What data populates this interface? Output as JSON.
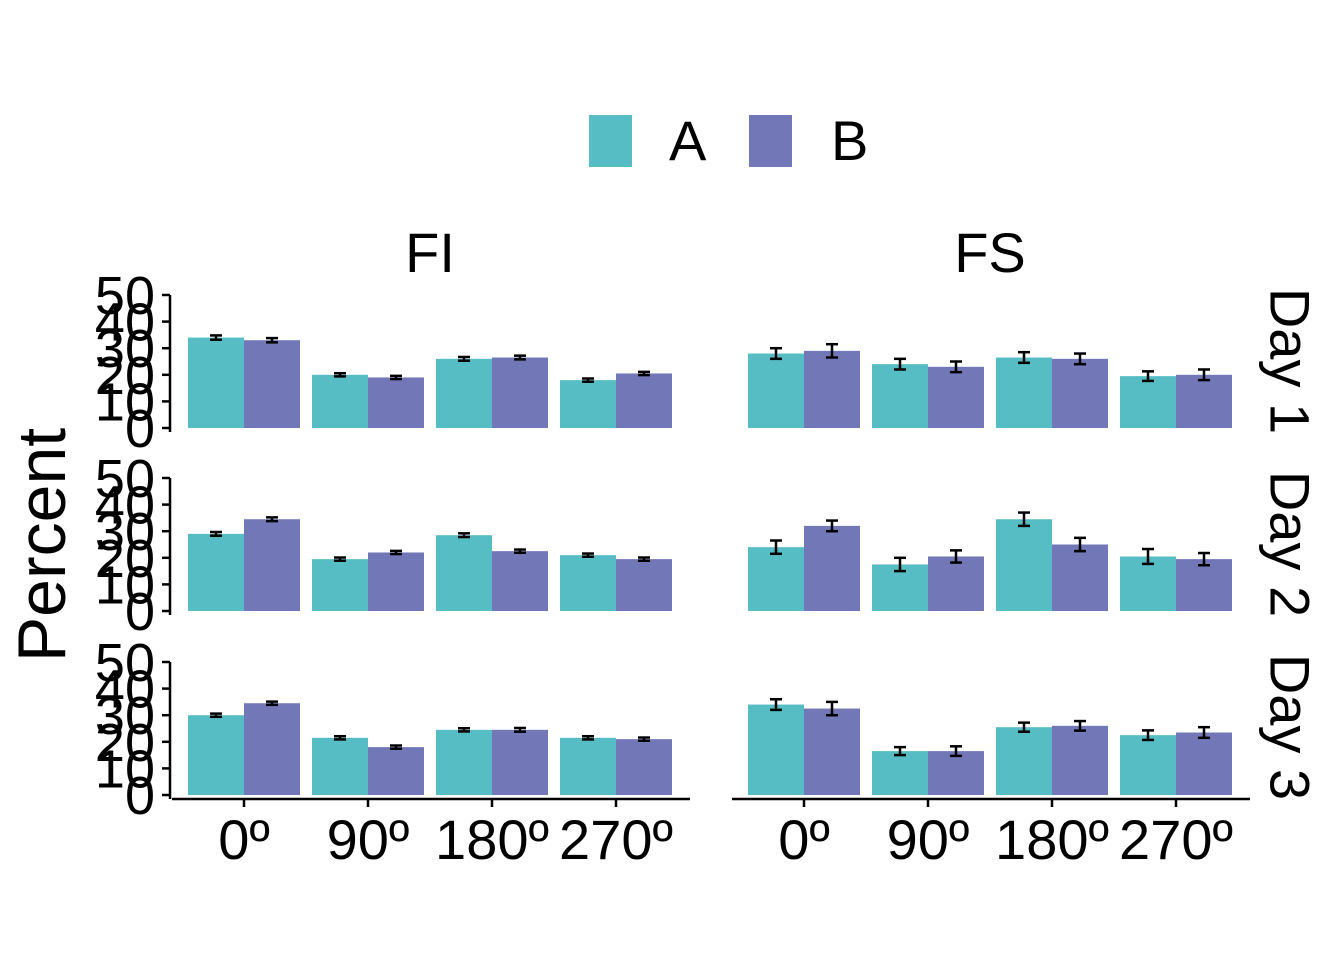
{
  "chart_data": {
    "type": "bar",
    "xlabel": "",
    "ylabel": "Percent",
    "ylim": [
      0,
      50
    ],
    "y_ticks": [
      "0",
      "10",
      "20",
      "30",
      "40",
      "50"
    ],
    "categories": [
      "0º",
      "90º",
      "180º",
      "270º"
    ],
    "legend": {
      "position": "top",
      "entries": [
        {
          "name": "A",
          "color": "#56BDC5"
        },
        {
          "name": "B",
          "color": "#7277B7"
        }
      ]
    },
    "facet_columns": [
      "FI",
      "FS"
    ],
    "facet_rows": [
      "Day 1",
      "Day 2",
      "Day 3"
    ],
    "grid": false,
    "panels": [
      {
        "column": "FI",
        "row": "Day 1",
        "series": [
          {
            "name": "A",
            "values": [
              34,
              20,
              26,
              18
            ],
            "errors": [
              0.8,
              0.6,
              0.7,
              0.6
            ]
          },
          {
            "name": "B",
            "values": [
              33,
              19,
              26.5,
              20.5
            ],
            "errors": [
              0.8,
              0.6,
              0.7,
              0.6
            ]
          }
        ]
      },
      {
        "column": "FS",
        "row": "Day 1",
        "series": [
          {
            "name": "A",
            "values": [
              28,
              24,
              26.5,
              19.5
            ],
            "errors": [
              2.0,
              2.0,
              2.0,
              1.8
            ]
          },
          {
            "name": "B",
            "values": [
              29,
              23,
              26,
              20
            ],
            "errors": [
              2.5,
              2.0,
              2.0,
              2.0
            ]
          }
        ]
      },
      {
        "column": "FI",
        "row": "Day 2",
        "series": [
          {
            "name": "A",
            "values": [
              29,
              19.5,
              28.5,
              21
            ],
            "errors": [
              0.7,
              0.6,
              0.7,
              0.6
            ]
          },
          {
            "name": "B",
            "values": [
              34.5,
              22,
              22.5,
              19.5
            ],
            "errors": [
              0.7,
              0.6,
              0.6,
              0.6
            ]
          }
        ]
      },
      {
        "column": "FS",
        "row": "Day 2",
        "series": [
          {
            "name": "A",
            "values": [
              24,
              17.5,
              34.5,
              20.5
            ],
            "errors": [
              2.5,
              2.5,
              2.5,
              2.8
            ]
          },
          {
            "name": "B",
            "values": [
              32,
              20.5,
              25,
              19.5
            ],
            "errors": [
              2.0,
              2.3,
              2.5,
              2.3
            ]
          }
        ]
      },
      {
        "column": "FI",
        "row": "Day 3",
        "series": [
          {
            "name": "A",
            "values": [
              30,
              21.5,
              24.5,
              21.5
            ],
            "errors": [
              0.6,
              0.6,
              0.6,
              0.6
            ]
          },
          {
            "name": "B",
            "values": [
              34.5,
              18,
              24.5,
              21
            ],
            "errors": [
              0.6,
              0.6,
              0.7,
              0.6
            ]
          }
        ]
      },
      {
        "column": "FS",
        "row": "Day 3",
        "series": [
          {
            "name": "A",
            "values": [
              34,
              16.5,
              25.5,
              22.5
            ],
            "errors": [
              2.0,
              1.5,
              1.7,
              1.8
            ]
          },
          {
            "name": "B",
            "values": [
              32.5,
              16.5,
              26,
              23.5
            ],
            "errors": [
              2.5,
              1.8,
              1.8,
              2.0
            ]
          }
        ]
      }
    ]
  }
}
